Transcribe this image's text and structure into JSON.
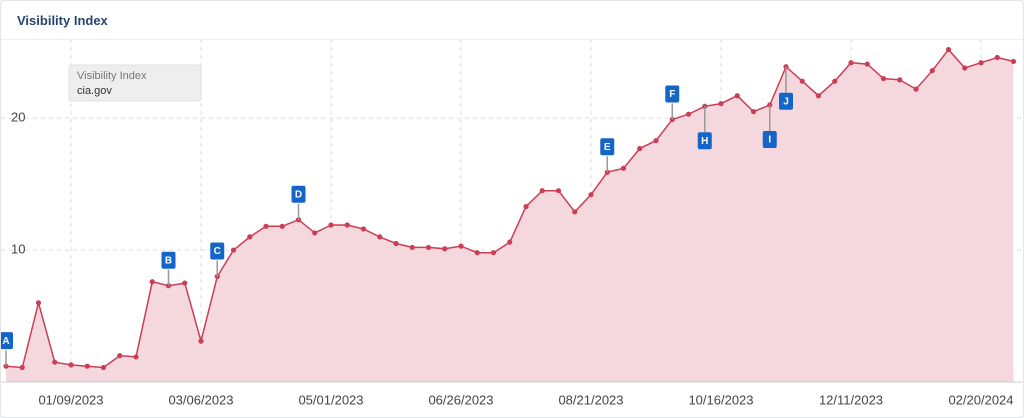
{
  "card_title": "Visibility Index",
  "chart_data": {
    "type": "area",
    "legend_title": "Visibility Index",
    "categories": [
      null,
      null,
      null,
      null,
      "01/09/2023",
      null,
      null,
      null,
      null,
      null,
      null,
      null,
      "03/06/2023",
      null,
      null,
      null,
      null,
      null,
      null,
      null,
      "05/01/2023",
      null,
      null,
      null,
      null,
      null,
      null,
      null,
      "06/26/2023",
      null,
      null,
      null,
      null,
      null,
      null,
      null,
      "08/21/2023",
      null,
      null,
      null,
      null,
      null,
      null,
      null,
      "10/16/2023",
      null,
      null,
      null,
      null,
      null,
      null,
      null,
      "12/11/2023",
      null,
      null,
      null,
      null,
      null,
      null,
      null,
      "02/20/2024",
      null,
      null
    ],
    "series": [
      {
        "name": "cia.gov",
        "color": "#cc3d56",
        "fill": "#f5d8dd",
        "values": [
          1.2,
          1.1,
          6.0,
          1.5,
          1.3,
          1.2,
          1.1,
          2.0,
          1.9,
          7.6,
          7.3,
          7.5,
          3.1,
          8.0,
          10.0,
          11.0,
          11.8,
          11.8,
          12.3,
          11.3,
          11.9,
          11.9,
          11.6,
          11.0,
          10.5,
          10.2,
          10.2,
          10.1,
          10.3,
          9.8,
          9.8,
          10.6,
          13.3,
          14.5,
          14.5,
          12.9,
          14.2,
          15.9,
          16.2,
          17.7,
          18.3,
          19.9,
          20.3,
          20.9,
          21.1,
          21.7,
          20.5,
          21.0,
          23.9,
          22.8,
          21.7,
          22.8,
          24.2,
          24.1,
          23.0,
          22.9,
          22.2,
          23.6,
          25.2,
          23.8,
          24.2,
          24.6,
          24.3
        ],
        "point_labels": [
          "A",
          null,
          null,
          null,
          null,
          null,
          null,
          null,
          null,
          null,
          "B",
          null,
          null,
          "C",
          null,
          null,
          null,
          null,
          "D",
          null,
          null,
          null,
          null,
          null,
          null,
          null,
          null,
          null,
          null,
          null,
          null,
          null,
          null,
          null,
          null,
          null,
          null,
          "E",
          null,
          null,
          null,
          "F",
          null,
          "H",
          null,
          null,
          null,
          "I",
          "J",
          null,
          null,
          null,
          null,
          null,
          null,
          null,
          null,
          null,
          null,
          null,
          null,
          null,
          null
        ]
      }
    ],
    "ylim": [
      0,
      26
    ],
    "yticks": [
      10,
      20
    ],
    "grid": true
  }
}
